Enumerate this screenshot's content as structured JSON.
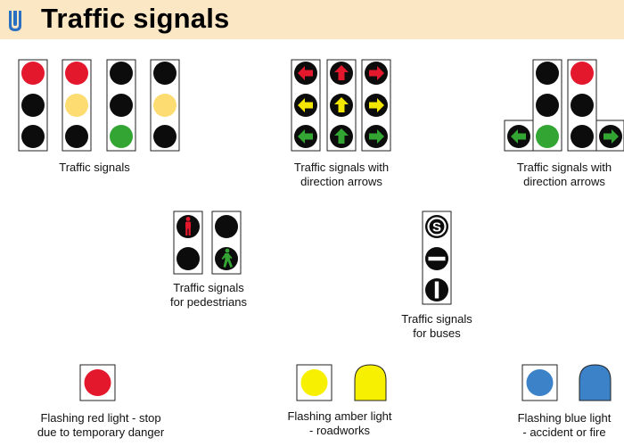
{
  "header": {
    "title": "Traffic signals",
    "logo_icon": "blue-signpost-icon"
  },
  "colors": {
    "header_bg": "#fbe7c4",
    "red": "#e4182d",
    "amber": "#fddc72",
    "green": "#33a532",
    "off": "#0c0c0c",
    "flash_red": "#e4182d",
    "flash_amber": "#f7f000",
    "flash_blue": "#3c82c8"
  },
  "sections": {
    "traffic_signals": {
      "caption_line1": "Traffic signals"
    },
    "direction_arrows": {
      "caption_line1": "Traffic signals with",
      "caption_line2": "direction arrows"
    },
    "filter_arrows": {
      "caption_line1": "Traffic signals with",
      "caption_line2": "direction arrows"
    },
    "pedestrians": {
      "caption_line1": "Traffic signals",
      "caption_line2": "for pedestrians"
    },
    "buses": {
      "caption_line1": "Traffic signals",
      "caption_line2": "for buses",
      "bus_symbol_s": "S"
    },
    "flashing_red": {
      "caption_line1": "Flashing red light - stop",
      "caption_line2": "due to temporary danger"
    },
    "flashing_amber": {
      "caption_line1": "Flashing amber light",
      "caption_line2": "- roadworks"
    },
    "flashing_blue": {
      "caption_line1": "Flashing blue light",
      "caption_line2": "- accident or fire"
    }
  }
}
